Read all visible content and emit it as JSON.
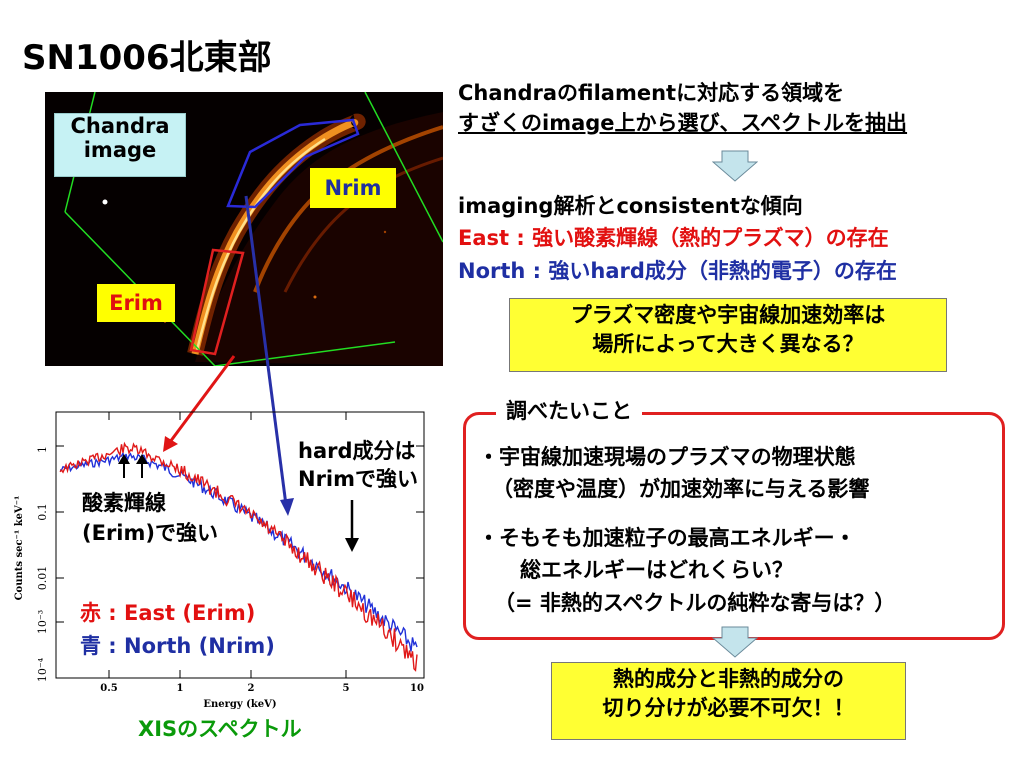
{
  "title": "SN1006北東部",
  "image": {
    "chandra_label_line1": "Chandra",
    "chandra_label_line2": "image",
    "nrim_label": "Nrim",
    "erim_label": "Erim"
  },
  "right_top": {
    "line1": "Chandraのfilamentに対応する領域を",
    "line2": "すざくのimage上から選び、スペクトルを抽出"
  },
  "result": {
    "line1": "imaging解析とconsistentな傾向",
    "line2": "East : 強い酸素輝線（熱的プラズマ）の存在",
    "line3": "North : 強いhard成分（非熱的電子）の存在"
  },
  "question_box": {
    "line1": "プラズマ密度や宇宙線加速効率は",
    "line2": "場所によって大きく異なる？"
  },
  "investigate": {
    "heading": "調べたいこと",
    "item1_line1": "・宇宙線加速現場のプラズマの物理状態",
    "item1_line2": "（密度や温度）が加速効率に与える影響",
    "item2_line1": "・そもそも加速粒子の最高エネルギー・",
    "item2_line2": "総エネルギーはどれくらい？",
    "item2_line3": "（= 非熱的スペクトルの純粋な寄与は？）"
  },
  "conclusion_box": {
    "line1": "熱的成分と非熱的成分の",
    "line2": "切り分けが必要不可欠！！"
  },
  "spectrum": {
    "oxygen_label_line1": "酸素輝線",
    "oxygen_label_line2": "(Erim)で強い",
    "hard_label_line1": "hard成分は",
    "hard_label_line2": "Nrimで強い",
    "legend_red": "赤 : East (Erim)",
    "legend_blue": "青 : North (Nrim)",
    "caption": "XISのスペクトル",
    "xlabel": "Energy (keV)",
    "ylabel": "Counts sec⁻¹ keV⁻¹",
    "xticks": [
      "0.5",
      "1",
      "2",
      "5",
      "10"
    ],
    "yticks": [
      "1",
      "0.1",
      "0.01",
      "10⁻³",
      "10⁻⁴"
    ]
  },
  "colors": {
    "red": "#e21010",
    "blue": "#1f2fa3",
    "yellow": "#ffff33",
    "cyan": "#c6f2f4",
    "arrow_fill": "#c4e4ec"
  }
}
